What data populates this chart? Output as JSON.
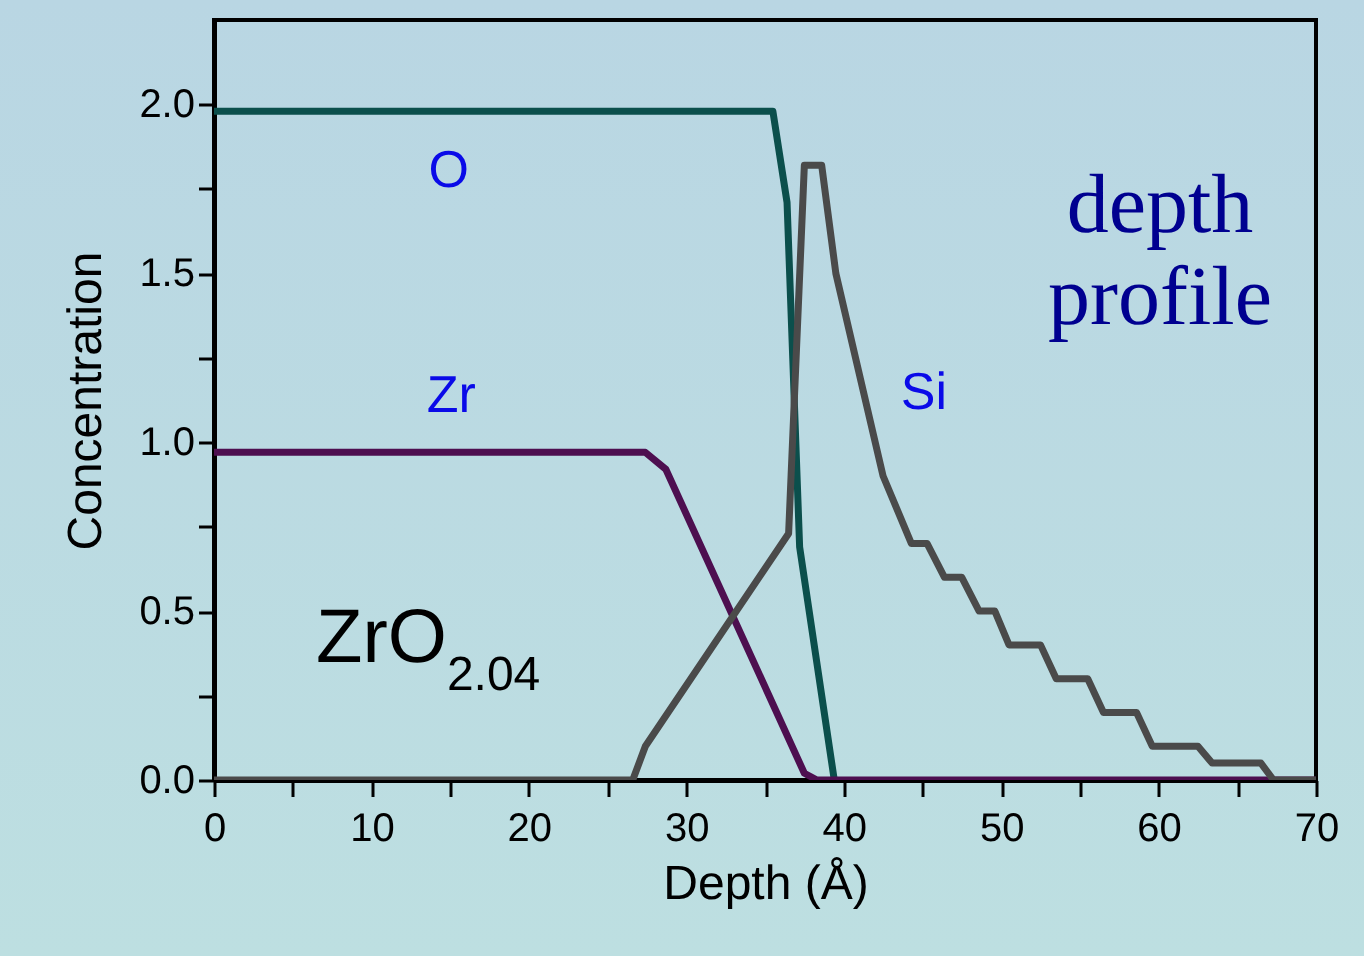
{
  "chart_data": {
    "type": "line",
    "xlabel": "Depth (Å)",
    "ylabel": "Concentration",
    "xlim": [
      0,
      70
    ],
    "ylim": [
      0,
      2.25
    ],
    "xticks": [
      0,
      {
        "value": 5,
        "label": null
      },
      10,
      {
        "value": 15,
        "label": null
      },
      20,
      {
        "value": 25,
        "label": null
      },
      30,
      {
        "value": 35,
        "label": null
      },
      40,
      {
        "value": 45,
        "label": null
      },
      50,
      {
        "value": 55,
        "label": null
      },
      60,
      {
        "value": 65,
        "label": null
      },
      70
    ],
    "yticks": [
      {
        "value": 0,
        "label": "0.0"
      },
      {
        "value": 0.25,
        "label": null
      },
      {
        "value": 0.5,
        "label": "0.5"
      },
      {
        "value": 0.75,
        "label": null
      },
      {
        "value": 1,
        "label": "1.0"
      },
      {
        "value": 1.25,
        "label": null
      },
      {
        "value": 1.5,
        "label": "1.5"
      },
      {
        "value": 1.75,
        "label": null
      },
      {
        "value": 2,
        "label": "2.0"
      }
    ],
    "grid": false,
    "marker": "none",
    "line_style": "solid",
    "annotations": [
      "depth profile",
      "ZrO$_{2.04}$"
    ],
    "series": [
      {
        "name": "O",
        "color": "#0b4f4c",
        "x": [
          0,
          35.5,
          36.4,
          37.2,
          39.4
        ],
        "values": [
          1.98,
          1.98,
          1.71,
          0.69,
          0
        ]
      },
      {
        "name": "Zr",
        "color": "#4d0f50",
        "x": [
          0,
          27.4,
          28.7,
          37.5,
          38.3,
          70
        ],
        "values": [
          0.97,
          0.97,
          0.92,
          0.02,
          0,
          0
        ]
      },
      {
        "name": "Si",
        "color": "#4a4a4a",
        "x": [
          0,
          26.6,
          27.4,
          36.5,
          37.5,
          38.6,
          39.5,
          42.5,
          44.3,
          45.3,
          46.4,
          47.5,
          48.6,
          49.6,
          50.5,
          52.5,
          53.5,
          55.5,
          56.5,
          58.6,
          59.6,
          62.5,
          63.4,
          66.5,
          67.3,
          70
        ],
        "values": [
          0,
          0,
          0.1,
          0.73,
          1.82,
          1.82,
          1.5,
          0.9,
          0.7,
          0.7,
          0.6,
          0.6,
          0.5,
          0.5,
          0.4,
          0.4,
          0.3,
          0.3,
          0.2,
          0.2,
          0.1,
          0.1,
          0.05,
          0.05,
          0,
          0
        ]
      }
    ]
  }
}
